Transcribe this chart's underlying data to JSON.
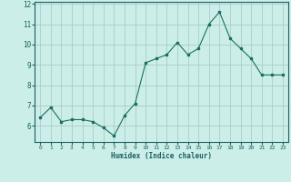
{
  "x": [
    0,
    1,
    2,
    3,
    4,
    5,
    6,
    7,
    8,
    9,
    10,
    11,
    12,
    13,
    14,
    15,
    16,
    17,
    18,
    19,
    20,
    21,
    22,
    23
  ],
  "y": [
    6.4,
    6.9,
    6.2,
    6.3,
    6.3,
    6.2,
    5.9,
    5.5,
    6.5,
    7.1,
    9.1,
    9.3,
    9.5,
    10.1,
    9.5,
    9.8,
    11.0,
    11.6,
    10.3,
    9.8,
    9.3,
    8.5,
    8.5,
    8.5
  ],
  "line_color": "#1a7060",
  "marker": "s",
  "marker_size": 2,
  "background_color": "#cceee8",
  "grid_color": "#aacccc",
  "xlabel": "Humidex (Indice chaleur)",
  "ylim": [
    5.2,
    12.1
  ],
  "xlim": [
    -0.5,
    23.5
  ],
  "yticks": [
    6,
    7,
    8,
    9,
    10,
    11,
    12
  ],
  "xticks": [
    0,
    1,
    2,
    3,
    4,
    5,
    6,
    7,
    8,
    9,
    10,
    11,
    12,
    13,
    14,
    15,
    16,
    17,
    18,
    19,
    20,
    21,
    22,
    23
  ],
  "font_color": "#1a6060"
}
